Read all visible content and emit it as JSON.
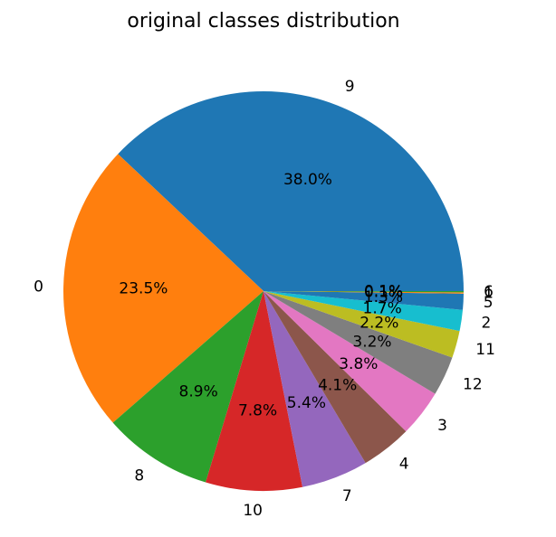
{
  "chart_data": {
    "type": "pie",
    "title": "original classes distribution",
    "categories": [
      "9",
      "0",
      "8",
      "10",
      "7",
      "4",
      "3",
      "12",
      "11",
      "2",
      "5",
      "1",
      "6"
    ],
    "values": [
      38.0,
      23.5,
      8.9,
      7.8,
      5.4,
      4.1,
      3.8,
      3.2,
      2.2,
      1.7,
      1.3,
      0.1,
      0.1
    ],
    "labels": [
      "38.0%",
      "23.5%",
      "8.9%",
      "7.8%",
      "5.4%",
      "4.1%",
      "3.8%",
      "3.2%",
      "2.2%",
      "1.7%",
      "1.3%",
      "0.1%",
      "0.1%"
    ],
    "colors": [
      "#1f77b4",
      "#ff7f0e",
      "#2ca02c",
      "#d62728",
      "#9467bd",
      "#8c564b",
      "#e377c2",
      "#7f7f7f",
      "#bcbd22",
      "#17becf",
      "#1f77b4",
      "#ff7f0e",
      "#2ca02c"
    ],
    "start_angle_deg": 0,
    "direction": "counterclockwise",
    "legend": "none"
  }
}
